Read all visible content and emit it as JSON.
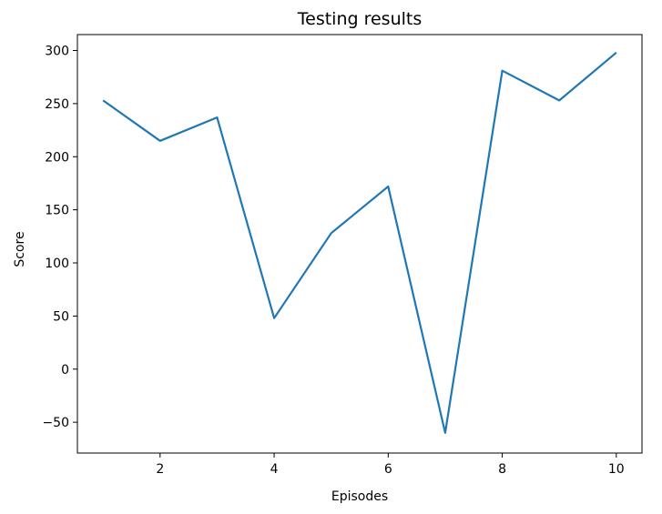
{
  "chart_data": {
    "type": "line",
    "title": "Testing results",
    "xlabel": "Episodes",
    "ylabel": "Score",
    "xlim": [
      0.55,
      10.45
    ],
    "ylim": [
      -79,
      315
    ],
    "xticks": [
      2,
      4,
      6,
      8,
      10
    ],
    "yticks": [
      -50,
      0,
      50,
      100,
      150,
      200,
      250,
      300
    ],
    "grid": false,
    "series": [
      {
        "color": "#1f77b4",
        "x": [
          1,
          2,
          3,
          4,
          5,
          6,
          7,
          8,
          9,
          10
        ],
        "y": [
          253,
          215,
          237,
          48,
          128,
          172,
          -60,
          281,
          253,
          298
        ]
      }
    ]
  }
}
